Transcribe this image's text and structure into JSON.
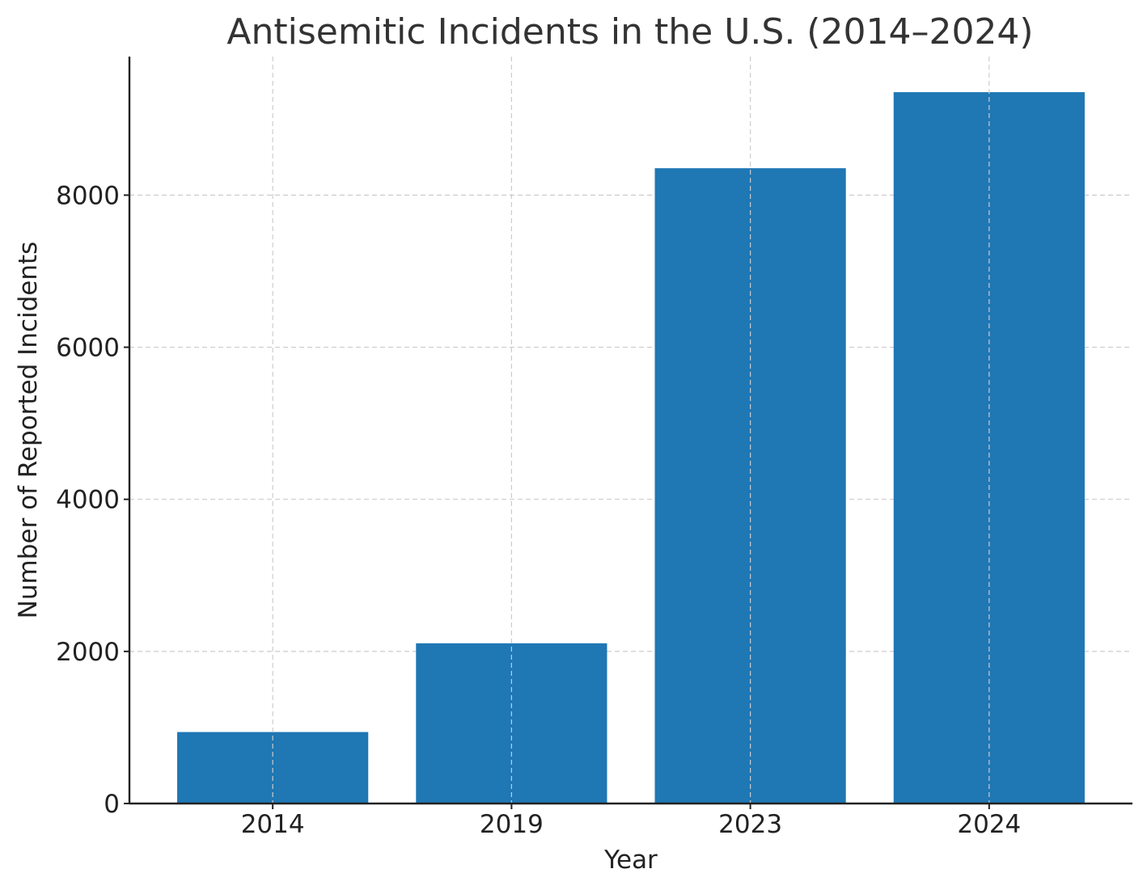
{
  "chart_data": {
    "type": "bar",
    "title": "Antisemitic Incidents in the U.S. (2014–2024)",
    "xlabel": "Year",
    "ylabel": "Number of Reported Incidents",
    "categories": [
      "2014",
      "2019",
      "2023",
      "2024"
    ],
    "values": [
      940,
      2107,
      8354,
      9354
    ],
    "ylim": [
      0,
      9822
    ],
    "yticks": [
      0,
      2000,
      4000,
      6000,
      8000
    ],
    "grid": true,
    "bar_color": "#1f77b4"
  }
}
